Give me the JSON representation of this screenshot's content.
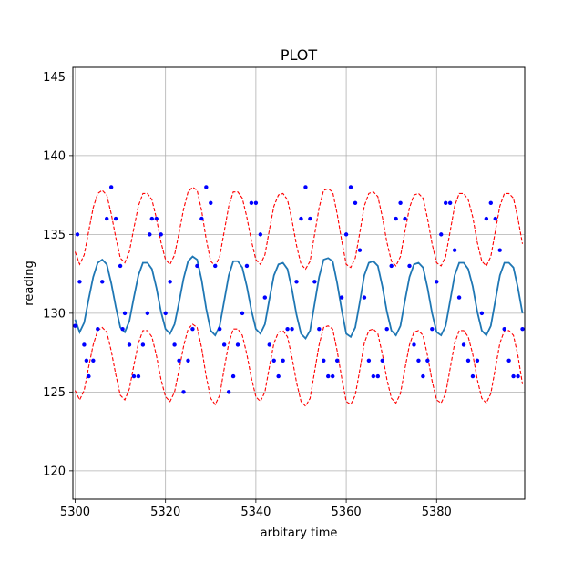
{
  "chart_data": {
    "type": "line",
    "title": "PLOT",
    "xlabel": "arbitary time",
    "ylabel": "reading",
    "xlim": [
      5299.5,
      5399.5
    ],
    "ylim": [
      118.2,
      145.6
    ],
    "grid": true,
    "xticks": [
      5300,
      5320,
      5340,
      5360,
      5380
    ],
    "yticks": [
      120,
      125,
      130,
      135,
      140,
      145
    ],
    "colors": {
      "line": "#1f77b4",
      "band": "#ff0000",
      "points": "#0000ff",
      "grid": "#b0b0b0"
    },
    "x": [
      5300,
      5301,
      5302,
      5303,
      5304,
      5305,
      5306,
      5307,
      5308,
      5309,
      5310,
      5311,
      5312,
      5313,
      5314,
      5315,
      5316,
      5317,
      5318,
      5319,
      5320,
      5321,
      5322,
      5323,
      5324,
      5325,
      5326,
      5327,
      5328,
      5329,
      5330,
      5331,
      5332,
      5333,
      5334,
      5335,
      5336,
      5337,
      5338,
      5339,
      5340,
      5341,
      5342,
      5343,
      5344,
      5345,
      5346,
      5347,
      5348,
      5349,
      5350,
      5351,
      5352,
      5353,
      5354,
      5355,
      5356,
      5357,
      5358,
      5359,
      5360,
      5361,
      5362,
      5363,
      5364,
      5365,
      5366,
      5367,
      5368,
      5369,
      5370,
      5371,
      5372,
      5373,
      5374,
      5375,
      5376,
      5377,
      5378,
      5379,
      5380,
      5381,
      5382,
      5383,
      5384,
      5385,
      5386,
      5387,
      5388,
      5389,
      5390,
      5391,
      5392,
      5393,
      5394,
      5395,
      5396,
      5397,
      5398,
      5399
    ],
    "series": [
      {
        "role": "fit",
        "style": "solid",
        "color": "#1f77b4",
        "values": [
          129.6,
          128.8,
          129.4,
          130.9,
          132.3,
          133.2,
          133.4,
          133.1,
          131.9,
          130.4,
          129.1,
          128.8,
          129.5,
          131.0,
          132.4,
          133.2,
          133.2,
          132.8,
          131.6,
          130.1,
          129.0,
          128.7,
          129.3,
          130.7,
          132.2,
          133.3,
          133.6,
          133.4,
          132.1,
          130.3,
          128.9,
          128.6,
          129.2,
          130.8,
          132.4,
          133.3,
          133.3,
          132.9,
          131.7,
          130.2,
          129.0,
          128.7,
          129.3,
          130.9,
          132.4,
          133.1,
          133.2,
          132.8,
          131.5,
          129.9,
          128.7,
          128.4,
          128.9,
          130.6,
          132.3,
          133.4,
          133.5,
          133.3,
          131.9,
          130.2,
          128.7,
          128.5,
          129.1,
          130.7,
          132.4,
          133.2,
          133.3,
          133.0,
          131.7,
          130.1,
          128.9,
          128.6,
          129.2,
          130.8,
          132.3,
          133.1,
          133.2,
          132.9,
          131.6,
          130.0,
          128.8,
          128.6,
          129.2,
          130.8,
          132.4,
          133.2,
          133.2,
          132.8,
          131.7,
          130.1,
          128.9,
          128.6,
          129.2,
          130.8,
          132.4,
          133.2,
          133.2,
          132.9,
          131.6,
          130.0
        ]
      },
      {
        "role": "upper-bound",
        "style": "dashed",
        "color": "#ff0000",
        "values": [
          133.9,
          133.1,
          133.7,
          135.2,
          136.7,
          137.6,
          137.8,
          137.5,
          136.3,
          134.8,
          133.5,
          133.2,
          133.9,
          135.4,
          136.8,
          137.6,
          137.6,
          137.2,
          136.0,
          134.5,
          133.4,
          133.1,
          133.7,
          135.1,
          136.6,
          137.7,
          138.0,
          137.8,
          136.5,
          134.7,
          133.3,
          133.0,
          133.6,
          135.2,
          136.8,
          137.7,
          137.7,
          137.3,
          136.1,
          134.6,
          133.4,
          133.1,
          133.7,
          135.3,
          136.8,
          137.5,
          137.6,
          137.2,
          135.9,
          134.3,
          133.1,
          132.8,
          133.3,
          135.0,
          136.7,
          137.8,
          137.9,
          137.7,
          136.3,
          134.6,
          133.1,
          132.9,
          133.5,
          135.1,
          136.8,
          137.6,
          137.7,
          137.4,
          136.1,
          134.5,
          133.3,
          133.0,
          133.6,
          135.2,
          136.7,
          137.5,
          137.6,
          137.3,
          136.0,
          134.4,
          133.2,
          133.0,
          133.6,
          135.2,
          136.8,
          137.6,
          137.6,
          137.2,
          136.1,
          134.5,
          133.3,
          133.0,
          133.6,
          135.2,
          136.8,
          137.6,
          137.6,
          137.3,
          136.0,
          134.4
        ]
      },
      {
        "role": "lower-bound",
        "style": "dashed",
        "color": "#ff0000",
        "values": [
          125.1,
          124.5,
          125.1,
          126.6,
          128.0,
          128.9,
          129.1,
          128.8,
          127.6,
          126.1,
          124.8,
          124.5,
          125.2,
          126.7,
          128.1,
          128.9,
          128.9,
          128.5,
          127.3,
          125.8,
          124.7,
          124.4,
          125.0,
          126.4,
          127.9,
          129.0,
          129.3,
          129.1,
          127.8,
          126.0,
          124.6,
          124.2,
          124.8,
          126.5,
          128.1,
          129.0,
          129.0,
          128.6,
          127.4,
          125.9,
          124.7,
          124.4,
          125.0,
          126.6,
          128.1,
          128.8,
          128.9,
          128.5,
          127.2,
          125.6,
          124.4,
          124.1,
          124.6,
          126.3,
          128.0,
          129.1,
          129.2,
          129.0,
          127.6,
          125.9,
          124.4,
          124.2,
          124.8,
          126.4,
          128.1,
          128.9,
          129.0,
          128.7,
          127.4,
          125.8,
          124.6,
          124.3,
          124.9,
          126.5,
          128.0,
          128.8,
          128.9,
          128.6,
          127.3,
          125.7,
          124.5,
          124.3,
          124.9,
          126.5,
          128.1,
          128.9,
          128.9,
          128.5,
          127.4,
          125.8,
          124.6,
          124.3,
          124.9,
          126.5,
          128.1,
          128.9,
          128.9,
          128.6,
          127.3,
          125.5
        ]
      }
    ],
    "points": {
      "type": "scatter",
      "color": "#0000ff",
      "x": [
        5300,
        5300.5,
        5301,
        5302,
        5302.5,
        5303,
        5304,
        5305,
        5306,
        5307,
        5308,
        5309,
        5310,
        5310.5,
        5311,
        5312,
        5313,
        5314,
        5315,
        5316,
        5316.5,
        5317,
        5318,
        5319,
        5320,
        5321,
        5322,
        5323,
        5324,
        5325,
        5326,
        5327,
        5328,
        5329,
        5330,
        5331,
        5332,
        5333,
        5334,
        5335,
        5336,
        5337,
        5338,
        5339,
        5340,
        5341,
        5342,
        5343,
        5344,
        5345,
        5346,
        5347,
        5348,
        5349,
        5350,
        5351,
        5352,
        5353,
        5354,
        5355,
        5356,
        5357,
        5358,
        5359,
        5360,
        5361,
        5362,
        5363,
        5364,
        5365,
        5366,
        5367,
        5368,
        5369,
        5370,
        5371,
        5372,
        5373,
        5374,
        5375,
        5376,
        5377,
        5378,
        5379,
        5380,
        5381,
        5382,
        5383,
        5384,
        5385,
        5386,
        5387,
        5388,
        5389,
        5390,
        5391,
        5392,
        5393,
        5394,
        5395,
        5396,
        5397,
        5398,
        5399
      ],
      "y": [
        129.2,
        135,
        132,
        128,
        127,
        126,
        127,
        129,
        132,
        136,
        138,
        136,
        133,
        129,
        130,
        128,
        126,
        126,
        128,
        130,
        135,
        136,
        136,
        135,
        130,
        132,
        128,
        127,
        125,
        127,
        129,
        133,
        136,
        138,
        137,
        133,
        129,
        128,
        125,
        126,
        128,
        130,
        133,
        137,
        137,
        135,
        131,
        128,
        127,
        126,
        127,
        129,
        129,
        132,
        136,
        138,
        136,
        132,
        129,
        127,
        126,
        126,
        127,
        131,
        135,
        138,
        137,
        134,
        131,
        127,
        126,
        126,
        127,
        129,
        133,
        136,
        137,
        136,
        133,
        128,
        127,
        126,
        127,
        129,
        132,
        135,
        137,
        137,
        134,
        131,
        128,
        127,
        126,
        127,
        130,
        136,
        137,
        136,
        134,
        129,
        127,
        126,
        126,
        129
      ]
    }
  }
}
